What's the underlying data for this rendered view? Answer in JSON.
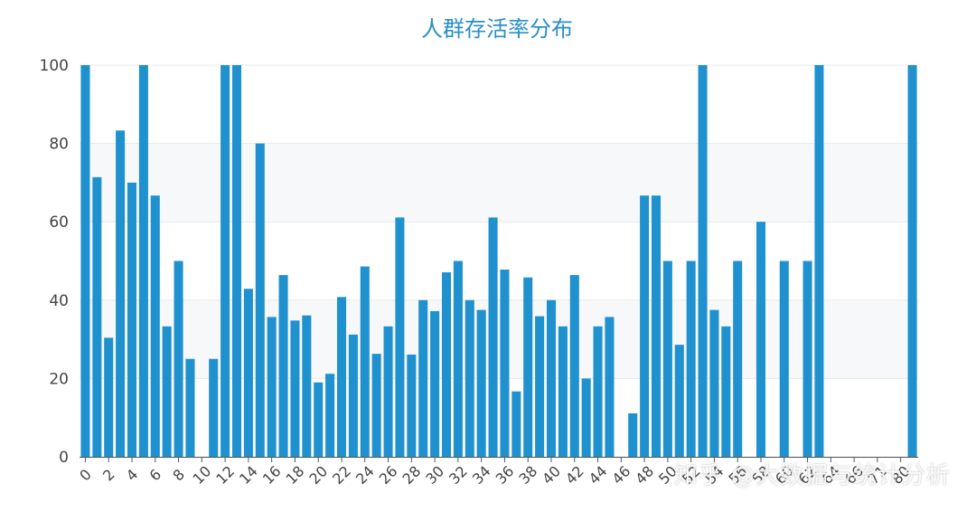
{
  "chart_data": {
    "type": "bar",
    "title": "人群存活率分布",
    "xlabel": "",
    "ylabel": "",
    "ylim": [
      0,
      100
    ],
    "yticks": [
      0,
      20,
      40,
      60,
      80,
      100
    ],
    "grid": true,
    "bar_color": "#1f91cf",
    "categories": [
      "0",
      "1",
      "2",
      "3",
      "4",
      "5",
      "6",
      "7",
      "8",
      "9",
      "10",
      "11",
      "12",
      "13",
      "14",
      "15",
      "16",
      "17",
      "18",
      "19",
      "20",
      "21",
      "22",
      "23",
      "24",
      "25",
      "26",
      "27",
      "28",
      "29",
      "30",
      "31",
      "32",
      "33",
      "34",
      "35",
      "36",
      "37",
      "38",
      "39",
      "40",
      "41",
      "42",
      "43",
      "44",
      "45",
      "46",
      "47",
      "48",
      "49",
      "50",
      "51",
      "52",
      "53",
      "54",
      "55",
      "56",
      "57",
      "58",
      "59",
      "60",
      "61",
      "62",
      "63",
      "64",
      "65",
      "66",
      "67",
      "70",
      "71",
      "74",
      "80"
    ],
    "values": [
      100,
      71.4,
      30.4,
      83.3,
      70,
      100,
      66.7,
      33.3,
      50,
      25,
      0,
      25,
      100,
      100,
      42.9,
      80,
      35.7,
      46.4,
      34.8,
      36.1,
      19,
      21.2,
      40.8,
      31.2,
      48.6,
      26.3,
      33.3,
      61.1,
      26.1,
      40,
      37.2,
      47.1,
      50,
      40,
      37.5,
      61.1,
      47.8,
      16.7,
      45.8,
      35.9,
      40,
      33.3,
      46.4,
      20,
      33.3,
      35.7,
      0,
      11.1,
      66.7,
      66.7,
      50,
      28.6,
      50,
      100,
      37.5,
      33.3,
      50,
      0,
      60,
      0,
      50,
      0,
      50,
      100,
      0,
      0,
      0,
      0,
      0,
      0,
      0,
      100
    ],
    "x_tick_labels": [
      "0",
      "2",
      "4",
      "6",
      "8",
      "10",
      "12",
      "14",
      "16",
      "18",
      "20",
      "22",
      "24",
      "26",
      "28",
      "30",
      "32",
      "34",
      "36",
      "38",
      "40",
      "42",
      "44",
      "46",
      "48",
      "50",
      "52",
      "54",
      "56",
      "58",
      "60",
      "62",
      "64",
      "66",
      "71",
      "80"
    ]
  },
  "watermark": "知乎 @大数据与统计分析"
}
